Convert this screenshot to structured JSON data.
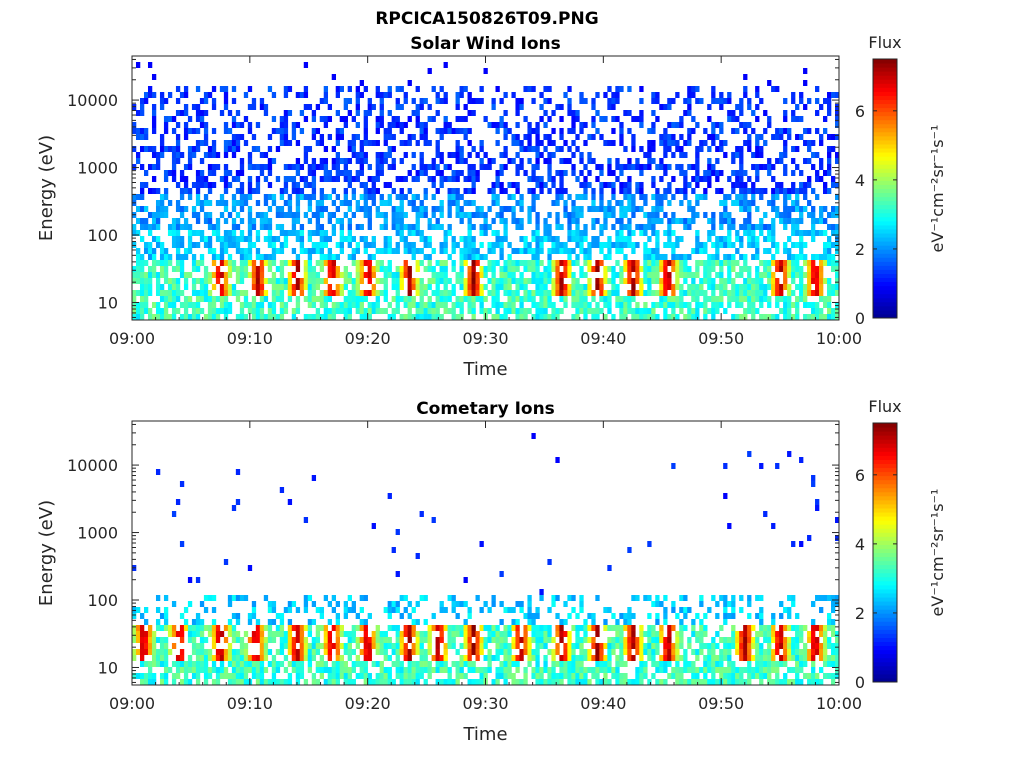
{
  "figure": {
    "title": "RPCICA150826T09.PNG"
  },
  "colormap": {
    "name": "jet",
    "stops": [
      "#00008f",
      "#0000ff",
      "#00ffff",
      "#ffff00",
      "#ff0000",
      "#800000"
    ]
  },
  "chart_data": [
    {
      "type": "heatmap",
      "title": "Solar Wind Ions",
      "xlabel": "Time",
      "ylabel": "Energy (eV)",
      "x_ticks": [
        "09:00",
        "09:10",
        "09:20",
        "09:30",
        "09:40",
        "09:50",
        "10:00"
      ],
      "xlim": [
        0,
        60
      ],
      "y_scale": "log",
      "y_ticks": [
        {
          "value": 10,
          "label": "10"
        },
        {
          "value": 100,
          "label": "100"
        },
        {
          "value": 1000,
          "label": "1000"
        },
        {
          "value": 10000,
          "label": "10000"
        }
      ],
      "ylim": [
        5.5,
        45000
      ],
      "colorbar": {
        "title": "Flux",
        "label": "eV⁻¹cm⁻²sr⁻¹s⁻¹",
        "ticks": [
          "0",
          "2",
          "4",
          "6"
        ],
        "range": [
          0,
          7.5
        ]
      },
      "high_energy_density": 0.55,
      "bursts_minutes": [
        7.5,
        10.7,
        14,
        17,
        20,
        23.5,
        29,
        36.5,
        39.5,
        42.5,
        45.5,
        55,
        58
      ]
    },
    {
      "type": "heatmap",
      "title": "Cometary Ions",
      "xlabel": "Time",
      "ylabel": "Energy (eV)",
      "x_ticks": [
        "09:00",
        "09:10",
        "09:20",
        "09:30",
        "09:40",
        "09:50",
        "10:00"
      ],
      "xlim": [
        0,
        60
      ],
      "y_scale": "log",
      "y_ticks": [
        {
          "value": 10,
          "label": "10"
        },
        {
          "value": 100,
          "label": "100"
        },
        {
          "value": 1000,
          "label": "1000"
        },
        {
          "value": 10000,
          "label": "10000"
        }
      ],
      "ylim": [
        5.5,
        45000
      ],
      "colorbar": {
        "title": "Flux",
        "label": "eV⁻¹cm⁻²sr⁻¹s⁻¹",
        "ticks": [
          "0",
          "2",
          "4",
          "6"
        ],
        "range": [
          0,
          7.5
        ]
      },
      "high_energy_density": 0.012,
      "bursts_minutes": [
        1,
        4,
        7.5,
        10.5,
        14,
        17,
        20,
        23.5,
        26,
        29,
        33,
        36.5,
        39.5,
        42.5,
        45.5,
        52,
        55,
        58
      ]
    }
  ]
}
